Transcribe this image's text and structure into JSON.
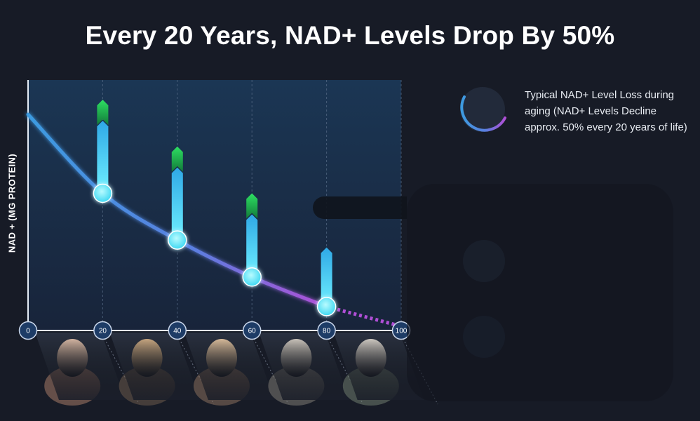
{
  "title": "Every 20 Years, NAD+ Levels Drop By 50%",
  "legend": {
    "text": "Typical NAD+ Level Loss during aging (NAD+ Levels Decline approx. 50% every 20 years of life)"
  },
  "colors": {
    "background": "#171b26",
    "plot_bg": "#1a2e4a",
    "curve_start": "#3d9be0",
    "curve_end": "#b04fd6",
    "arrow_cyan": "#4fd6f0",
    "arrow_green": "#1fbf4f"
  },
  "chart_data": {
    "type": "line",
    "ylabel": "NAD + (MG PROTEIN)",
    "xlabel": "",
    "x_ticks": [
      "0",
      "20",
      "40",
      "60",
      "80",
      "100"
    ],
    "xlim": [
      0,
      100
    ],
    "ylim": [
      0,
      100
    ],
    "series": [
      {
        "x": [
          0,
          20,
          40,
          60,
          80,
          100
        ],
        "y": [
          86,
          54,
          35,
          20,
          8,
          0
        ]
      }
    ],
    "markers": [
      {
        "x": 20,
        "y": 54
      },
      {
        "x": 40,
        "y": 35
      },
      {
        "x": 60,
        "y": 20
      },
      {
        "x": 80,
        "y": 8
      }
    ],
    "arrows": [
      {
        "x": 20,
        "y_base": 54,
        "y_top": 92,
        "green": true
      },
      {
        "x": 40,
        "y_base": 35,
        "y_top": 73,
        "green": true
      },
      {
        "x": 60,
        "y_base": 20,
        "y_top": 54,
        "green": true
      },
      {
        "x": 80,
        "y_base": 8,
        "y_top": 32,
        "green": false
      }
    ],
    "photos": [
      "baby-photo",
      "young-woman-photo",
      "middle-aged-woman-photo",
      "older-woman-photo",
      "elderly-woman-photo"
    ]
  }
}
